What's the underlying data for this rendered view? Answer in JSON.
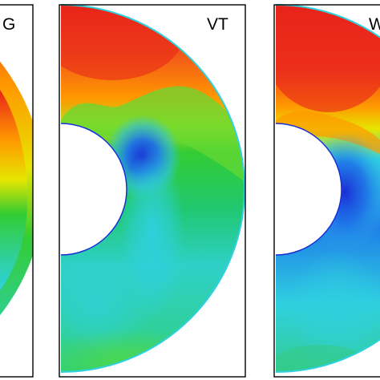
{
  "panels": [
    {
      "label": "G"
    },
    {
      "label": "VT"
    },
    {
      "label": "W"
    }
  ],
  "colormap": [
    "#1a2fd6",
    "#1e7fe8",
    "#2fd0e0",
    "#33cc33",
    "#e6e600",
    "#ff9900",
    "#e8231a"
  ]
}
